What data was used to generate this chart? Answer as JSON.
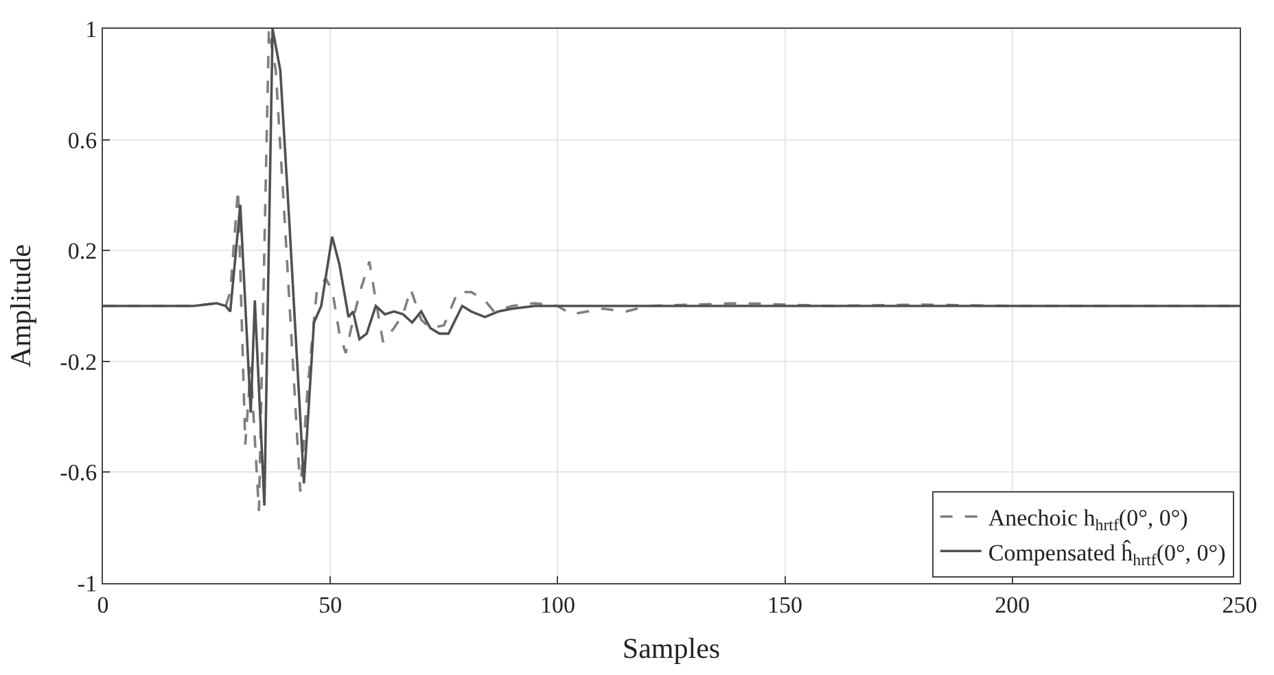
{
  "chart_data": {
    "type": "line",
    "xlabel": "Samples",
    "ylabel": "Amplitude",
    "xlim": [
      0,
      250
    ],
    "ylim": [
      -1,
      1
    ],
    "xticks": [
      0,
      50,
      100,
      150,
      200,
      250
    ],
    "yticks": [
      -1,
      -0.6,
      -0.2,
      0.2,
      0.6,
      1
    ],
    "grid": true,
    "legend": "bottom right",
    "series": [
      {
        "name": "Anechoic h$_{hrtf}$(0°, 0°)",
        "color": "#7f7f7f",
        "line_style": "dashed",
        "x": [
          0,
          10,
          20,
          25,
          27,
          28,
          29.7,
          31.3,
          32.5,
          34.3,
          36.5,
          38,
          40,
          43.4,
          45,
          47,
          49,
          50.5,
          52,
          53.4,
          55,
          56.5,
          58.6,
          60,
          61.6,
          64,
          66,
          67.7,
          70,
          72,
          75,
          78,
          81,
          84,
          86,
          90,
          95,
          100,
          103,
          110,
          115,
          120,
          140,
          160,
          180,
          200,
          250
        ],
        "values": [
          0,
          0,
          0,
          0.01,
          0,
          0.05,
          0.42,
          -0.5,
          -0.22,
          -0.74,
          1,
          0.85,
          0.3,
          -0.67,
          -0.3,
          0.05,
          0.1,
          0.05,
          -0.1,
          -0.17,
          -0.05,
          0.05,
          0.16,
          0.02,
          -0.13,
          -0.08,
          -0.03,
          0.06,
          -0.05,
          -0.08,
          -0.07,
          0.05,
          0.05,
          0.02,
          -0.02,
          0,
          0.01,
          0,
          -0.03,
          -0.01,
          -0.02,
          0,
          0.01,
          0,
          0.005,
          0,
          0
        ]
      },
      {
        "name": "Compensated ĥ$_{hrtf}$(0°, 0°)",
        "color": "#505050",
        "line_style": "solid",
        "x": [
          0,
          10,
          20,
          25,
          27,
          28,
          30.2,
          32.5,
          33.4,
          35.5,
          37.3,
          39,
          41,
          44.2,
          46.4,
          48,
          50.4,
          52,
          54,
          55,
          56.4,
          58,
          60,
          62,
          64,
          66,
          68,
          70,
          72,
          74,
          76,
          79,
          81,
          84,
          87,
          90,
          95,
          100,
          150,
          200,
          250
        ],
        "values": [
          0,
          0,
          0,
          0.01,
          0,
          -0.02,
          0.365,
          -0.385,
          0.02,
          -0.72,
          1,
          0.85,
          0.3,
          -0.64,
          -0.06,
          0,
          0.25,
          0.15,
          -0.04,
          -0.02,
          -0.12,
          -0.1,
          0,
          -0.03,
          -0.02,
          -0.03,
          -0.06,
          -0.02,
          -0.08,
          -0.1,
          -0.1,
          0,
          -0.02,
          -0.04,
          -0.02,
          -0.01,
          0,
          0,
          0,
          0,
          0
        ]
      }
    ]
  }
}
